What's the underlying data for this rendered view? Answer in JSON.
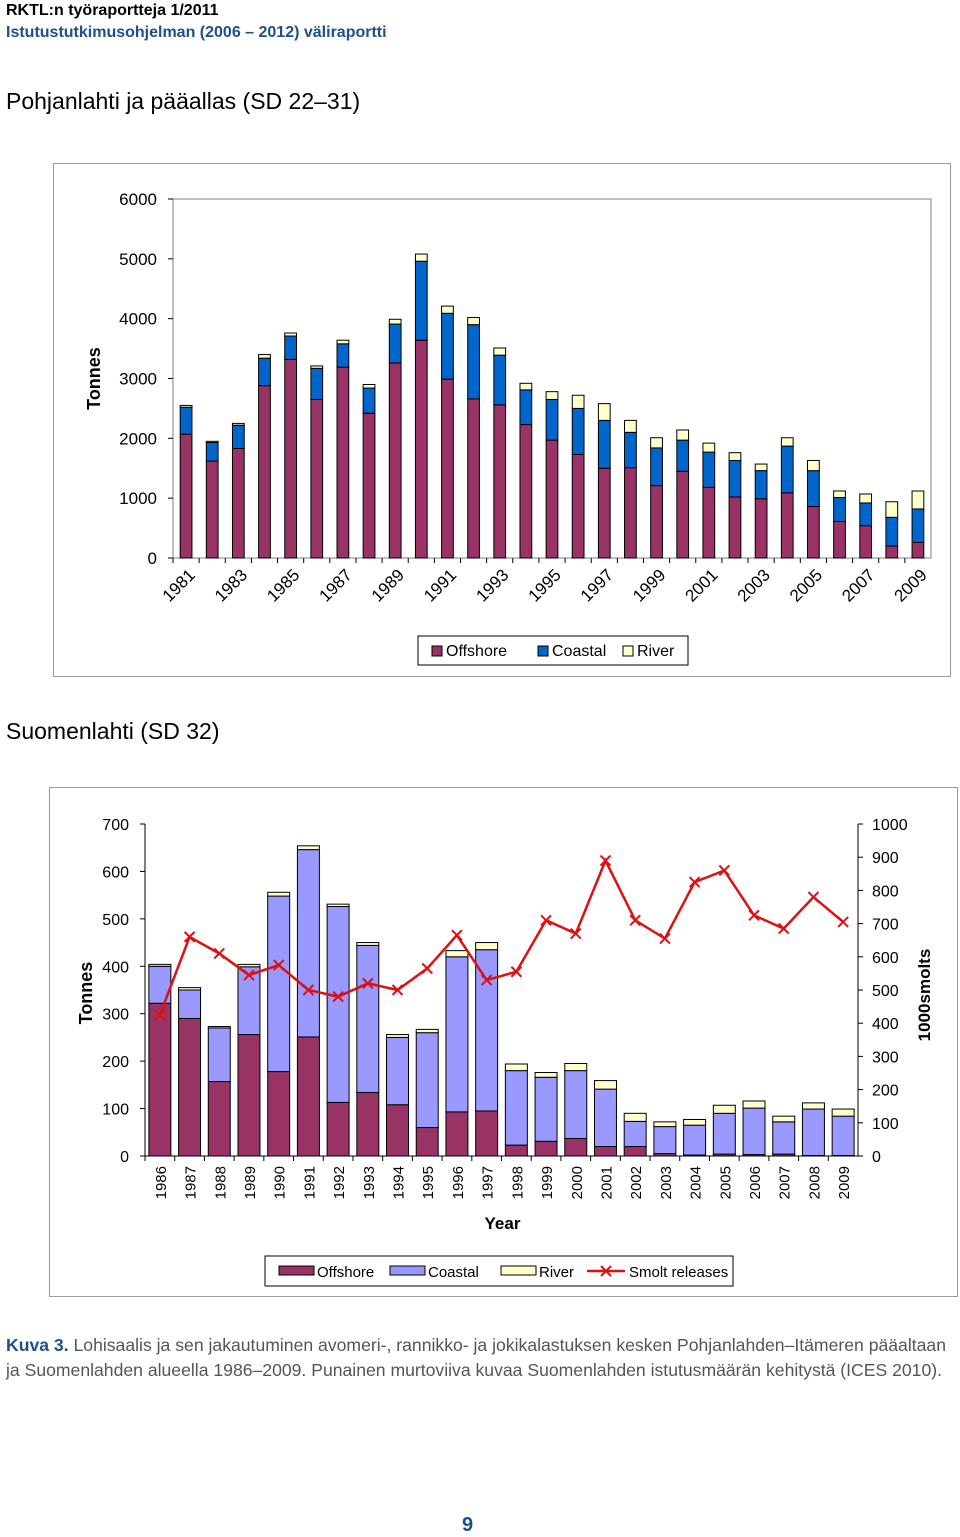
{
  "header": {
    "line1": "RKTL:n työraportteja 1/2011",
    "line2": "Istutustutkimusohjelman (2006 – 2012) väliraportti"
  },
  "section1_title": "Pohjanlahti ja pääallas (SD 22–31)",
  "section2_title": "Suomenlahti (SD 32)",
  "colors": {
    "offshore": "#993366",
    "coastal_chart1": "#0066cc",
    "coastal_chart2": "#9999ff",
    "river": "#ffffcc",
    "smolt": "#dd1111",
    "header_blue": "#1f4e8c"
  },
  "chart_data": [
    {
      "type": "bar",
      "stacked": true,
      "title": "",
      "xlabel": "",
      "ylabel": "Tonnes",
      "ylim": [
        0,
        6000
      ],
      "yticks": [
        "0",
        "1000",
        "2000",
        "3000",
        "4000",
        "5000",
        "6000"
      ],
      "x_tick_labels": [
        "1981",
        "1983",
        "1985",
        "1987",
        "1989",
        "1991",
        "1993",
        "1995",
        "1997",
        "1999",
        "2001",
        "2003",
        "2005",
        "2007",
        "2009"
      ],
      "categories": [
        "1981",
        "1982",
        "1983",
        "1984",
        "1985",
        "1986",
        "1987",
        "1988",
        "1989",
        "1990",
        "1991",
        "1992",
        "1993",
        "1994",
        "1995",
        "1996",
        "1997",
        "1998",
        "1999",
        "2000",
        "2001",
        "2002",
        "2003",
        "2004",
        "2005",
        "2006",
        "2007",
        "2008",
        "2009"
      ],
      "series": [
        {
          "name": "Offshore",
          "values": [
            2070,
            1620,
            1830,
            2880,
            3320,
            2650,
            3190,
            2420,
            3260,
            3640,
            2990,
            2660,
            2560,
            2230,
            1970,
            1730,
            1500,
            1510,
            1210,
            1450,
            1180,
            1020,
            990,
            1090,
            860,
            610,
            540,
            200,
            260
          ]
        },
        {
          "name": "Coastal",
          "values": [
            450,
            310,
            390,
            460,
            390,
            520,
            390,
            420,
            650,
            1320,
            1100,
            1240,
            830,
            580,
            680,
            770,
            800,
            590,
            630,
            520,
            590,
            610,
            470,
            780,
            600,
            400,
            380,
            480,
            560
          ]
        },
        {
          "name": "River",
          "values": [
            30,
            20,
            30,
            60,
            50,
            40,
            60,
            60,
            80,
            120,
            120,
            120,
            120,
            110,
            130,
            220,
            280,
            200,
            170,
            170,
            150,
            130,
            110,
            140,
            170,
            110,
            150,
            260,
            300
          ]
        }
      ],
      "legend": [
        "Offshore",
        "Coastal",
        "River"
      ],
      "legend_position": "bottom",
      "grid": false
    },
    {
      "type": "bar",
      "stacked": true,
      "title": "",
      "xlabel": "Year",
      "ylabel": "Tonnes",
      "y2label": "1000smolts",
      "ylim": [
        0,
        700
      ],
      "y2lim": [
        0,
        1000
      ],
      "yticks": [
        "0",
        "100",
        "200",
        "300",
        "400",
        "500",
        "600",
        "700"
      ],
      "y2ticks": [
        "0",
        "100",
        "200",
        "300",
        "400",
        "500",
        "600",
        "700",
        "800",
        "900",
        "1000"
      ],
      "categories": [
        "1986",
        "1987",
        "1988",
        "1989",
        "1990",
        "1991",
        "1992",
        "1993",
        "1994",
        "1995",
        "1996",
        "1997",
        "1998",
        "1999",
        "2000",
        "2001",
        "2002",
        "2003",
        "2004",
        "2005",
        "2006",
        "2007",
        "2008",
        "2009"
      ],
      "series": [
        {
          "name": "Offshore",
          "values": [
            322,
            290,
            157,
            256,
            178,
            251,
            113,
            134,
            108,
            60,
            93,
            95,
            23,
            31,
            37,
            20,
            20,
            5,
            2,
            4,
            3,
            4,
            1,
            1
          ]
        },
        {
          "name": "Coastal",
          "values": [
            78,
            60,
            113,
            143,
            370,
            395,
            413,
            310,
            142,
            200,
            327,
            340,
            157,
            135,
            143,
            121,
            53,
            57,
            63,
            86,
            98,
            68,
            98,
            83
          ]
        },
        {
          "name": "River",
          "values": [
            4,
            5,
            3,
            5,
            8,
            8,
            5,
            6,
            6,
            7,
            13,
            15,
            14,
            10,
            15,
            18,
            17,
            10,
            12,
            17,
            15,
            12,
            13,
            15
          ]
        }
      ],
      "line_series": {
        "name": "Smolt releases",
        "axis": "right",
        "values": [
          425,
          660,
          610,
          545,
          575,
          500,
          480,
          520,
          500,
          565,
          665,
          530,
          555,
          710,
          670,
          890,
          710,
          655,
          825,
          860,
          725,
          685,
          780,
          705
        ]
      },
      "legend": [
        "Offshore",
        "Coastal",
        "River",
        "Smolt releases"
      ],
      "legend_position": "bottom",
      "grid": false
    }
  ],
  "legend1": {
    "offshore": "Offshore",
    "coastal": "Coastal",
    "river": "River"
  },
  "legend2": {
    "offshore": "Offshore",
    "coastal": "Coastal",
    "river": "River",
    "smolt": "Smolt releases"
  },
  "caption": {
    "label": "Kuva 3.",
    "text": "Lohisaalis ja sen jakautuminen avomeri-, rannikko- ja jokikalastuksen kesken Pohjanlahden–Itämeren pääaltaan ja Suomenlahden alueella 1986–2009. Punainen murtoviiva kuvaa Suomenlahden istutusmäärän kehitystä (ICES 2010)."
  },
  "page_number": "9"
}
